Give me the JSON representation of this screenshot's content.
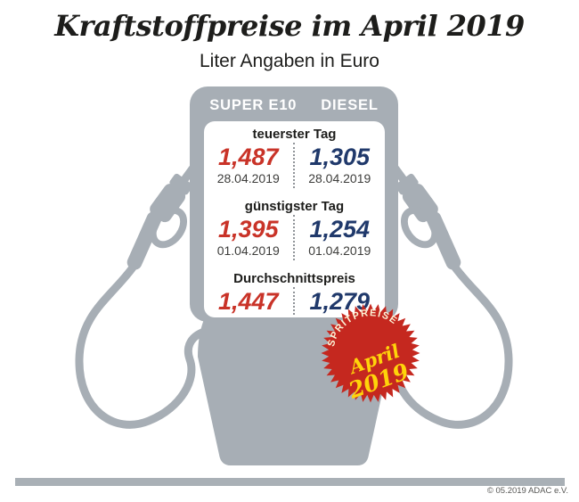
{
  "chart_data": {
    "type": "table",
    "title": "Kraftstoffpreise im April 2019",
    "subtitle": "Liter Angaben in Euro",
    "columns": [
      "SUPER E10",
      "DIESEL"
    ],
    "rows": [
      {
        "label": "teuerster Tag",
        "values": [
          "1,487",
          "1,305"
        ],
        "values_numeric": [
          1.487,
          1.305
        ],
        "dates": [
          "28.04.2019",
          "28.04.2019"
        ]
      },
      {
        "label": "günstigster Tag",
        "values": [
          "1,395",
          "1,254"
        ],
        "values_numeric": [
          1.395,
          1.254
        ],
        "dates": [
          "01.04.2019",
          "01.04.2019"
        ]
      },
      {
        "label": "Durchschnittspreis",
        "values": [
          "1,447",
          "1,279"
        ],
        "values_numeric": [
          1.447,
          1.279
        ],
        "dates": []
      }
    ]
  },
  "badge": {
    "arc_text": "SPRITPREISE",
    "month": "April",
    "year": "2019"
  },
  "footer": {
    "copyright": "© 05.2019 ADAC e.V."
  },
  "colors": {
    "super_e10_price": "#c93328",
    "diesel_price": "#20396b",
    "pump_gray": "#a7aeb5",
    "badge_red": "#c5281f",
    "badge_yellow": "#ffd40a",
    "badge_arc_cream": "#fdf3d6"
  }
}
